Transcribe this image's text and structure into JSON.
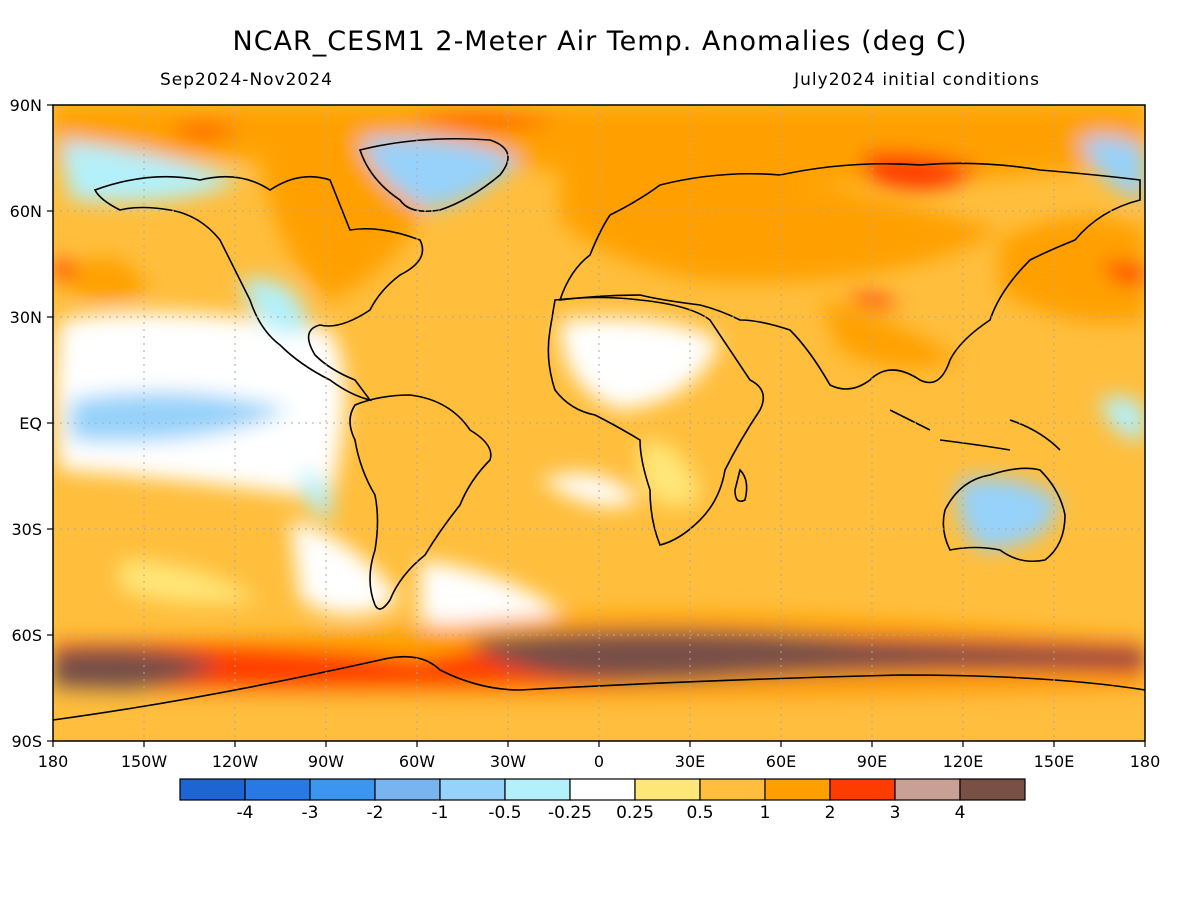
{
  "title": "NCAR_CESM1 2-Meter Air Temp. Anomalies (deg C)",
  "period": "Sep2024-Nov2024",
  "initial_conditions": "July2024 initial conditions",
  "map": {
    "lat_labels": [
      "90N",
      "60N",
      "30N",
      "EQ",
      "30S",
      "60S",
      "90S"
    ],
    "lon_labels": [
      "180",
      "150W",
      "120W",
      "90W",
      "60W",
      "30W",
      "0",
      "30E",
      "60E",
      "90E",
      "120E",
      "150E",
      "180"
    ]
  },
  "colorbar": {
    "colors": [
      "#1e64d2",
      "#2878e6",
      "#3c96f0",
      "#78b4f0",
      "#96d2fa",
      "#b4f0fa",
      "#ffffff",
      "#ffe678",
      "#ffbe3c",
      "#ffa000",
      "#ff3c00",
      "#c8a096",
      "#785046"
    ],
    "labels": [
      "-4",
      "-3",
      "-2",
      "-1",
      "-0.5",
      "-0.25",
      "0.25",
      "0.5",
      "1",
      "2",
      "3",
      "4"
    ]
  }
}
